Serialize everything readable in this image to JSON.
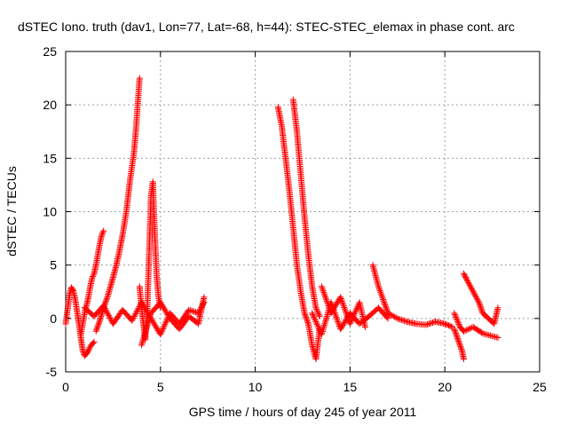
{
  "chart_data": {
    "type": "scatter",
    "title": "dSTEC Iono. truth (dav1, Lon=77, Lat=-68, h=44): STEC-STEC_elemax in phase cont. arc",
    "xlabel": "GPS time / hours of day 245 of year 2011",
    "ylabel": "dSTEC  / TECUs",
    "xlim": [
      0,
      25
    ],
    "ylim": [
      -5,
      25
    ],
    "x_ticks": [
      0,
      5,
      10,
      15,
      20,
      25
    ],
    "y_ticks": [
      -5,
      0,
      5,
      10,
      15,
      20,
      25
    ],
    "x_tick_labels": [
      "0",
      "5",
      "10",
      "15",
      "20",
      "25"
    ],
    "y_tick_labels": [
      "-5",
      "0",
      "5",
      "10",
      "15",
      "20",
      "25"
    ],
    "grid": true,
    "legend": "none",
    "marker": "plus",
    "color": "#ff0000",
    "segments": [
      {
        "x": [
          0.0,
          0.1,
          0.2,
          0.3,
          0.4,
          0.5,
          0.6,
          0.7,
          0.8,
          0.9,
          1.0,
          1.1,
          1.2,
          1.3,
          1.4,
          1.5
        ],
        "y": [
          -0.5,
          0.8,
          2.2,
          2.9,
          2.6,
          1.8,
          0.7,
          -0.5,
          -1.8,
          -3.0,
          -3.5,
          -3.3,
          -3.0,
          -2.6,
          -2.4,
          -2.2
        ]
      },
      {
        "x": [
          0.8,
          0.9,
          1.0,
          1.1,
          1.2,
          1.3,
          1.4,
          1.5,
          1.6,
          1.7,
          1.8,
          1.9,
          2.0
        ],
        "y": [
          -1.5,
          -0.5,
          0.5,
          1.2,
          2.0,
          3.0,
          3.8,
          4.2,
          5.0,
          6.0,
          7.0,
          7.8,
          8.2
        ]
      },
      {
        "x": [
          1.6,
          1.8,
          2.0,
          2.2,
          2.4,
          2.6,
          2.8,
          3.0,
          3.2,
          3.4,
          3.6,
          3.7,
          3.8,
          3.9
        ],
        "y": [
          -1.2,
          -0.2,
          1.0,
          2.0,
          3.2,
          4.5,
          6.0,
          7.8,
          10.0,
          13.0,
          15.5,
          17.5,
          20.0,
          22.5
        ]
      },
      {
        "x": [
          3.9,
          4.0,
          4.1,
          4.2,
          4.3,
          4.4,
          4.5,
          4.6,
          4.7,
          4.8,
          4.9,
          5.0
        ],
        "y": [
          3.0,
          1.0,
          -0.5,
          -2.0,
          0.5,
          6.0,
          11.5,
          12.8,
          8.0,
          4.0,
          2.0,
          1.0
        ]
      },
      {
        "x": [
          1.0,
          1.5,
          2.0,
          2.5,
          3.0,
          3.5,
          4.0,
          4.5,
          5.0,
          5.5,
          6.0,
          6.5,
          7.0,
          7.3
        ],
        "y": [
          1.0,
          0.2,
          1.2,
          -0.5,
          0.8,
          -0.2,
          1.5,
          0.0,
          -1.5,
          0.5,
          -0.5,
          0.8,
          0.5,
          1.5
        ]
      },
      {
        "x": [
          4.0,
          4.5,
          5.0,
          5.5,
          6.0,
          6.5,
          7.0,
          7.3
        ],
        "y": [
          -2.5,
          0.5,
          1.5,
          0.0,
          -1.0,
          0.2,
          -0.5,
          2.0
        ]
      },
      {
        "x": [
          11.2,
          11.4,
          11.6,
          11.8,
          12.0,
          12.2,
          12.4,
          12.6,
          12.8,
          13.0,
          13.2,
          13.4
        ],
        "y": [
          19.8,
          18.0,
          15.0,
          12.0,
          8.5,
          5.0,
          2.5,
          0.5,
          -0.5,
          -2.5,
          -3.8,
          -1.0
        ]
      },
      {
        "x": [
          12.0,
          12.2,
          12.4,
          12.6,
          12.8,
          13.0,
          13.2,
          13.4
        ],
        "y": [
          20.5,
          17.5,
          13.5,
          9.5,
          6.0,
          3.0,
          1.0,
          0.2
        ]
      },
      {
        "x": [
          13.0,
          13.5,
          14.0,
          14.5,
          15.0,
          15.5,
          16.0,
          16.5,
          17.0
        ],
        "y": [
          0.5,
          -1.5,
          1.5,
          -1.0,
          0.5,
          -0.5,
          0.2,
          1.0,
          0.0
        ]
      },
      {
        "x": [
          13.5,
          14.0,
          14.5,
          15.0,
          15.5,
          15.8
        ],
        "y": [
          3.0,
          0.5,
          2.0,
          -0.5,
          1.5,
          -0.8
        ]
      },
      {
        "x": [
          16.2,
          16.5,
          16.8,
          17.0,
          17.5,
          18.0,
          18.5,
          19.0,
          19.5,
          20.0,
          20.4
        ],
        "y": [
          5.0,
          3.0,
          1.5,
          0.5,
          0.0,
          -0.3,
          -0.5,
          -0.6,
          -0.3,
          -0.5,
          -0.8
        ]
      },
      {
        "x": [
          20.5,
          20.8,
          21.0,
          21.5,
          22.0,
          22.4,
          22.8
        ],
        "y": [
          0.5,
          -0.8,
          -1.2,
          -0.8,
          -1.4,
          -1.6,
          -1.8
        ]
      },
      {
        "x": [
          20.5,
          20.7,
          20.9,
          21.0
        ],
        "y": [
          -1.0,
          -2.0,
          -3.0,
          -3.8
        ]
      },
      {
        "x": [
          21.0,
          21.2,
          21.5,
          21.8,
          22.0,
          22.3,
          22.6,
          22.8
        ],
        "y": [
          4.2,
          3.5,
          2.5,
          1.5,
          0.5,
          0.0,
          -0.5,
          1.0
        ]
      }
    ]
  }
}
